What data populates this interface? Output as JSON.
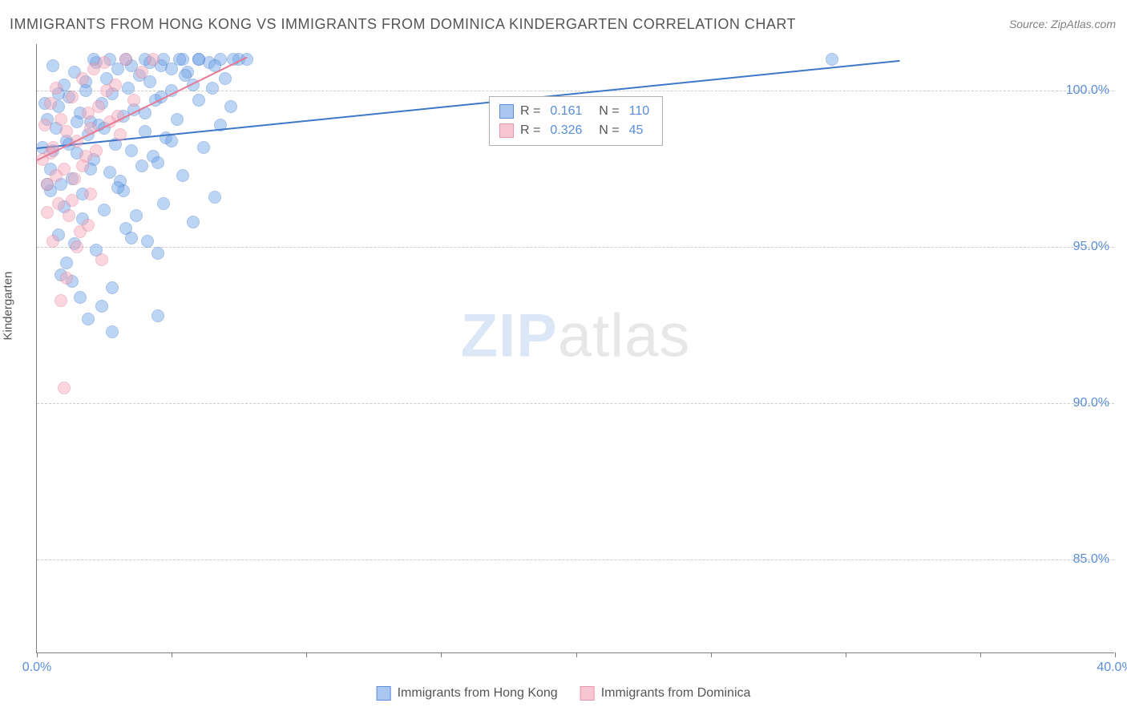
{
  "chart": {
    "type": "scatter",
    "title": "IMMIGRANTS FROM HONG KONG VS IMMIGRANTS FROM DOMINICA KINDERGARTEN CORRELATION CHART",
    "source_label": "Source: ZipAtlas.com",
    "ylabel": "Kindergarten",
    "watermark_zip": "ZIP",
    "watermark_atlas": "atlas",
    "xlim": [
      0,
      40
    ],
    "ylim": [
      82,
      101.5
    ],
    "xticks": [
      0,
      5,
      10,
      15,
      20,
      25,
      30,
      35,
      40
    ],
    "xtick_labels": [
      "0.0%",
      "",
      "",
      "",
      "",
      "",
      "",
      "",
      "40.0%"
    ],
    "yticks": [
      85,
      90,
      95,
      100
    ],
    "ytick_labels": [
      "85.0%",
      "90.0%",
      "95.0%",
      "100.0%"
    ],
    "grid_color": "#cccccc",
    "background_color": "#ffffff",
    "axis_color": "#808080",
    "tick_label_color": "#5b8dd6",
    "label_color": "#555555",
    "title_fontsize": 18,
    "label_fontsize": 15,
    "tick_fontsize": 16,
    "marker_radius": 8,
    "marker_opacity": 0.45,
    "series": [
      {
        "name": "Immigrants from Hong Kong",
        "color_fill": "#6fa3e8",
        "color_stroke": "#3f77c8",
        "r": "0.161",
        "n": "110",
        "trend": {
          "x1": 0,
          "y1": 98.2,
          "x2": 32,
          "y2": 101.0
        },
        "points": [
          [
            0.2,
            98.2
          ],
          [
            0.4,
            99.1
          ],
          [
            0.5,
            97.5
          ],
          [
            0.6,
            100.8
          ],
          [
            0.7,
            98.8
          ],
          [
            0.8,
            99.5
          ],
          [
            0.9,
            97.0
          ],
          [
            1.0,
            100.2
          ],
          [
            1.1,
            98.4
          ],
          [
            1.2,
            99.8
          ],
          [
            1.3,
            97.2
          ],
          [
            1.4,
            100.6
          ],
          [
            1.5,
            98.0
          ],
          [
            1.6,
            99.3
          ],
          [
            1.7,
            96.7
          ],
          [
            1.8,
            100.0
          ],
          [
            1.9,
            98.6
          ],
          [
            2.0,
            99.0
          ],
          [
            2.1,
            97.8
          ],
          [
            2.2,
            100.9
          ],
          [
            2.3,
            98.9
          ],
          [
            2.4,
            99.6
          ],
          [
            2.5,
            96.2
          ],
          [
            2.6,
            100.4
          ],
          [
            2.7,
            97.4
          ],
          [
            2.8,
            99.9
          ],
          [
            2.9,
            98.3
          ],
          [
            3.0,
            100.7
          ],
          [
            3.1,
            97.1
          ],
          [
            3.2,
            99.2
          ],
          [
            3.3,
            95.6
          ],
          [
            3.4,
            100.1
          ],
          [
            3.5,
            98.1
          ],
          [
            3.6,
            99.4
          ],
          [
            3.7,
            96.0
          ],
          [
            3.8,
            100.5
          ],
          [
            3.9,
            97.6
          ],
          [
            4.0,
            98.7
          ],
          [
            4.1,
            95.2
          ],
          [
            4.2,
            100.3
          ],
          [
            4.3,
            97.9
          ],
          [
            4.4,
            99.7
          ],
          [
            4.5,
            94.8
          ],
          [
            4.6,
            100.8
          ],
          [
            4.7,
            96.4
          ],
          [
            4.8,
            98.5
          ],
          [
            5.0,
            100.0
          ],
          [
            5.2,
            99.1
          ],
          [
            5.4,
            97.3
          ],
          [
            5.6,
            100.6
          ],
          [
            5.8,
            95.8
          ],
          [
            6.0,
            101.0
          ],
          [
            6.2,
            98.2
          ],
          [
            6.4,
            100.9
          ],
          [
            6.6,
            96.6
          ],
          [
            6.8,
            101.0
          ],
          [
            7.0,
            100.4
          ],
          [
            7.2,
            99.5
          ],
          [
            7.5,
            101.0
          ],
          [
            0.8,
            95.4
          ],
          [
            1.1,
            94.5
          ],
          [
            1.7,
            95.9
          ],
          [
            2.2,
            94.9
          ],
          [
            2.8,
            93.7
          ],
          [
            1.4,
            95.1
          ],
          [
            3.5,
            95.3
          ],
          [
            0.5,
            96.8
          ],
          [
            4.2,
            100.9
          ],
          [
            4.6,
            99.8
          ],
          [
            5.0,
            100.7
          ],
          [
            5.4,
            101.0
          ],
          [
            5.8,
            100.2
          ],
          [
            1.9,
            92.7
          ],
          [
            2.4,
            93.1
          ],
          [
            4.5,
            92.8
          ],
          [
            2.8,
            92.3
          ],
          [
            1.3,
            93.9
          ],
          [
            3.2,
            96.8
          ],
          [
            0.9,
            94.1
          ],
          [
            1.6,
            93.4
          ],
          [
            6.5,
            100.1
          ],
          [
            7.8,
            101.0
          ],
          [
            29.5,
            101.0
          ],
          [
            0.3,
            99.6
          ],
          [
            0.6,
            98.1
          ],
          [
            1.0,
            96.3
          ],
          [
            1.5,
            99.0
          ],
          [
            2.0,
            97.5
          ],
          [
            2.5,
            98.8
          ],
          [
            3.0,
            96.9
          ],
          [
            3.5,
            100.8
          ],
          [
            4.0,
            99.3
          ],
          [
            4.5,
            97.7
          ],
          [
            5.0,
            98.4
          ],
          [
            5.5,
            100.5
          ],
          [
            6.0,
            99.7
          ],
          [
            6.8,
            98.9
          ],
          [
            2.1,
            101.0
          ],
          [
            2.7,
            101.0
          ],
          [
            3.3,
            101.0
          ],
          [
            4.0,
            101.0
          ],
          [
            4.7,
            101.0
          ],
          [
            5.3,
            101.0
          ],
          [
            6.0,
            101.0
          ],
          [
            6.6,
            100.8
          ],
          [
            7.3,
            101.0
          ],
          [
            0.4,
            97.0
          ],
          [
            0.8,
            99.9
          ],
          [
            1.2,
            98.3
          ],
          [
            1.8,
            100.3
          ]
        ]
      },
      {
        "name": "Immigrants from Dominica",
        "color_fill": "#f4a6b8",
        "color_stroke": "#e57a94",
        "r": "0.326",
        "n": "45",
        "trend": {
          "x1": 0,
          "y1": 97.8,
          "x2": 7.8,
          "y2": 101.1
        },
        "points": [
          [
            0.2,
            97.8
          ],
          [
            0.3,
            98.9
          ],
          [
            0.4,
            97.0
          ],
          [
            0.5,
            99.6
          ],
          [
            0.6,
            98.2
          ],
          [
            0.7,
            100.1
          ],
          [
            0.8,
            96.4
          ],
          [
            0.9,
            99.1
          ],
          [
            1.0,
            97.5
          ],
          [
            1.1,
            98.7
          ],
          [
            1.2,
            96.0
          ],
          [
            1.3,
            99.8
          ],
          [
            1.4,
            97.2
          ],
          [
            1.5,
            98.4
          ],
          [
            1.6,
            95.5
          ],
          [
            1.7,
            100.4
          ],
          [
            1.8,
            97.9
          ],
          [
            1.9,
            99.3
          ],
          [
            2.0,
            96.7
          ],
          [
            2.1,
            100.7
          ],
          [
            2.2,
            98.1
          ],
          [
            2.3,
            99.5
          ],
          [
            2.5,
            100.9
          ],
          [
            2.7,
            99.0
          ],
          [
            2.9,
            100.2
          ],
          [
            3.1,
            98.6
          ],
          [
            3.3,
            101.0
          ],
          [
            3.6,
            99.7
          ],
          [
            3.9,
            100.6
          ],
          [
            4.3,
            101.0
          ],
          [
            0.6,
            95.2
          ],
          [
            1.1,
            94.0
          ],
          [
            0.4,
            96.1
          ],
          [
            1.5,
            95.0
          ],
          [
            0.9,
            93.3
          ],
          [
            1.3,
            96.5
          ],
          [
            1.9,
            95.7
          ],
          [
            2.4,
            94.6
          ],
          [
            0.7,
            97.3
          ],
          [
            1.0,
            90.5
          ],
          [
            0.5,
            98.0
          ],
          [
            1.7,
            97.6
          ],
          [
            2.0,
            98.8
          ],
          [
            2.6,
            100.0
          ],
          [
            3.0,
            99.2
          ]
        ]
      }
    ],
    "legend_series": [
      {
        "name": "Immigrants from Hong Kong",
        "fill": "#a9c7f0",
        "stroke": "#5b8dd6"
      },
      {
        "name": "Immigrants from Dominica",
        "fill": "#f8c6d2",
        "stroke": "#e895ab"
      }
    ],
    "correlation_legend": {
      "r_label": "R =",
      "n_label": "N ="
    }
  }
}
